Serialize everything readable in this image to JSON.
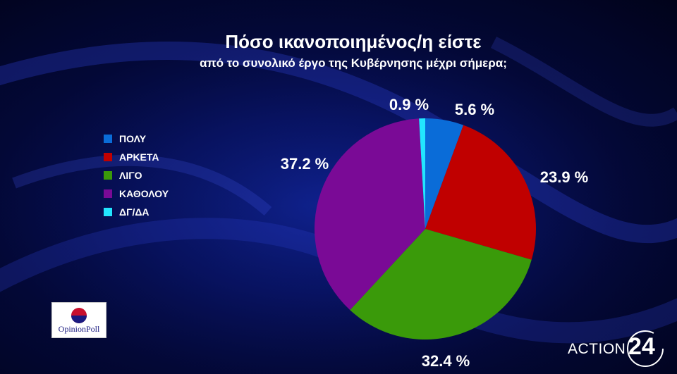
{
  "header": {
    "title": "Πόσο ικανοποιημένος/η είστε",
    "subtitle": "από το συνολικό έργο της Κυβέρνησης μέχρι σήμερα;"
  },
  "logo": {
    "label": "OpinionPoll",
    "icon": "opinionpoll-logo-icon"
  },
  "brand": {
    "text": "ACTION",
    "number": "24"
  },
  "chart_data": {
    "type": "pie",
    "categories": [
      "ΠΟΛΥ",
      "ΑΡΚΕΤΑ",
      "ΛΙΓΟ",
      "ΚΑΘΟΛΟΥ",
      "ΔΓ/ΔΑ"
    ],
    "values": [
      5.6,
      23.9,
      32.4,
      37.2,
      0.9
    ],
    "data_labels": [
      "5.6 %",
      "23.9 %",
      "32.4 %",
      "37.2 %",
      "0.9 %"
    ],
    "colors": [
      "#0a6cd8",
      "#c00000",
      "#3a9a0a",
      "#7a0a96",
      "#22e6ff"
    ],
    "start": "12 o'clock, clockwise",
    "legend_position": "left"
  }
}
